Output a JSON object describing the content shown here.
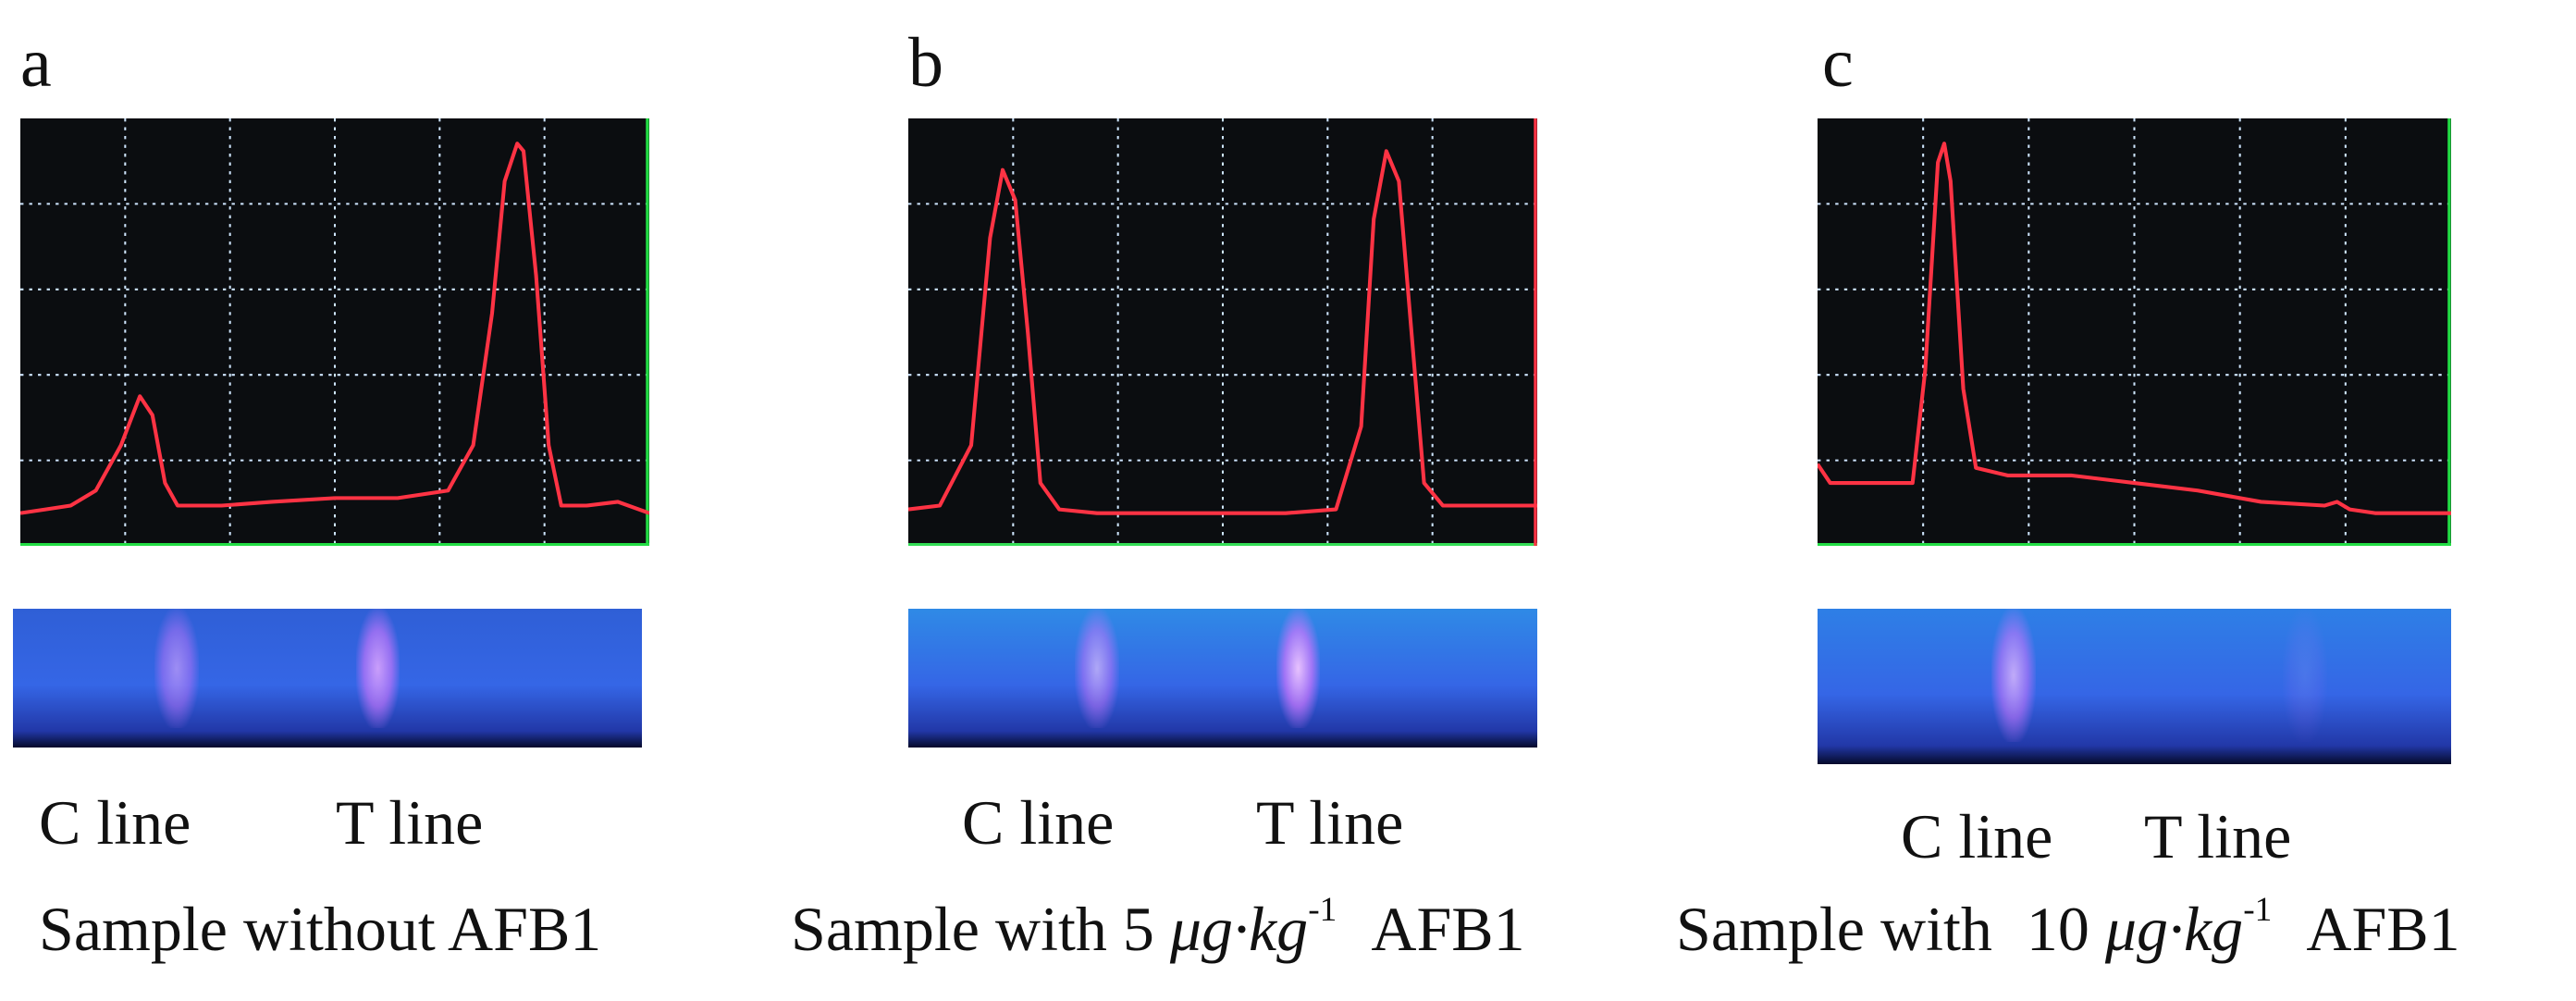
{
  "chart_data": [
    {
      "type": "line",
      "panel_label": "a",
      "c_line_label": "C line",
      "t_line_label": "T line",
      "caption": {
        "prefix": "Sample",
        "middle": "without",
        "unit": "",
        "analyte": "AFB1"
      },
      "series": [
        {
          "x": [
            0,
            0.04,
            0.08,
            0.12,
            0.16,
            0.19,
            0.21,
            0.23,
            0.25,
            0.28,
            0.32,
            0.4,
            0.5,
            0.6,
            0.68,
            0.72,
            0.75,
            0.77,
            0.79,
            0.8,
            0.82,
            0.84,
            0.86,
            0.9,
            0.95,
            1.0
          ],
          "y": [
            0.02,
            0.03,
            0.04,
            0.08,
            0.2,
            0.33,
            0.28,
            0.1,
            0.04,
            0.04,
            0.04,
            0.05,
            0.06,
            0.06,
            0.08,
            0.2,
            0.55,
            0.9,
            1.0,
            0.98,
            0.65,
            0.2,
            0.04,
            0.04,
            0.05,
            0.02
          ]
        }
      ],
      "strip": {
        "c_band": 0.26,
        "t_band": 0.58,
        "c_intensity": 0.6,
        "t_intensity": 0.85
      },
      "colors": {
        "trace": "#ff3344",
        "strip_bg": "#2f5fd6",
        "band": "#e3a8ff",
        "axis_end": "#22dd44"
      }
    },
    {
      "type": "line",
      "panel_label": "b",
      "c_line_label": "C line",
      "t_line_label": "T line",
      "caption": {
        "prefix": "Sample with",
        "middle": "5",
        "unit": "μg·kg",
        "unit_sup": "-1",
        "analyte": "AFB1"
      },
      "series": [
        {
          "x": [
            0,
            0.05,
            0.1,
            0.13,
            0.15,
            0.17,
            0.19,
            0.21,
            0.24,
            0.3,
            0.4,
            0.5,
            0.6,
            0.68,
            0.72,
            0.74,
            0.76,
            0.78,
            0.8,
            0.82,
            0.85,
            0.9,
            1.0
          ],
          "y": [
            0.03,
            0.04,
            0.2,
            0.75,
            0.93,
            0.85,
            0.5,
            0.1,
            0.03,
            0.02,
            0.02,
            0.02,
            0.02,
            0.03,
            0.25,
            0.8,
            0.98,
            0.9,
            0.5,
            0.1,
            0.04,
            0.04,
            0.04
          ]
        }
      ],
      "strip": {
        "c_band": 0.3,
        "t_band": 0.62,
        "c_intensity": 0.65,
        "t_intensity": 0.95
      },
      "colors": {
        "trace": "#ff3344",
        "strip_bg": "#2f8ae6",
        "band": "#f0c6ff",
        "axis_end": "#ff3344"
      }
    },
    {
      "type": "line",
      "panel_label": "c",
      "c_line_label": "C line",
      "t_line_label": "T line",
      "caption": {
        "prefix": "Sample with",
        "middle": "10",
        "unit": "μg·kg",
        "unit_sup": "-1",
        "analyte": "AFB1"
      },
      "series": [
        {
          "x": [
            0,
            0.02,
            0.08,
            0.15,
            0.17,
            0.19,
            0.2,
            0.21,
            0.23,
            0.25,
            0.3,
            0.4,
            0.5,
            0.6,
            0.7,
            0.8,
            0.82,
            0.84,
            0.88,
            0.94,
            1.0
          ],
          "y": [
            0.15,
            0.1,
            0.1,
            0.1,
            0.4,
            0.95,
            1.0,
            0.9,
            0.35,
            0.14,
            0.12,
            0.12,
            0.1,
            0.08,
            0.05,
            0.04,
            0.05,
            0.03,
            0.02,
            0.02,
            0.02
          ]
        }
      ],
      "strip": {
        "c_band": 0.31,
        "t_band": 0.77,
        "c_intensity": 0.75,
        "t_intensity": 0.12
      },
      "colors": {
        "trace": "#ff3344",
        "strip_bg": "#2e7fe6",
        "band": "#efc0ff",
        "axis_end": "#22dd44"
      }
    }
  ]
}
